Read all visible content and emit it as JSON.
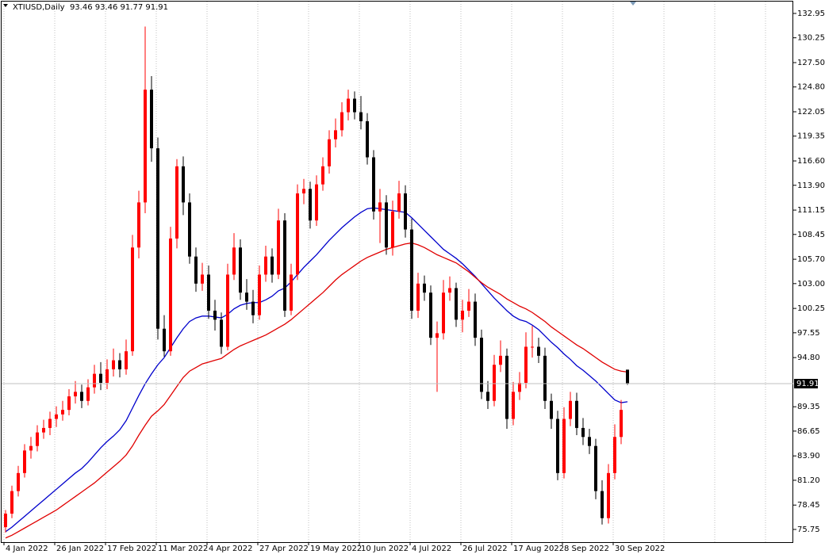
{
  "chart_data": {
    "type": "candlestick",
    "title": "XTIUSD,Daily  93.46 93.46 91.77 91.91",
    "categories": [
      "4 Jan 2022",
      null,
      null,
      null,
      null,
      null,
      null,
      null,
      "26 Jan 2022",
      null,
      null,
      null,
      null,
      null,
      null,
      null,
      "17 Feb 2022",
      null,
      null,
      null,
      null,
      null,
      null,
      null,
      "11 Mar 2022",
      null,
      null,
      null,
      null,
      null,
      null,
      null,
      "4 Apr 2022",
      null,
      null,
      null,
      null,
      null,
      null,
      null,
      "27 Apr 2022",
      null,
      null,
      null,
      null,
      null,
      null,
      null,
      "19 May 2022",
      null,
      null,
      null,
      null,
      null,
      null,
      null,
      "10 Jun 2022",
      null,
      null,
      null,
      null,
      null,
      null,
      null,
      "4 Jul 2022",
      null,
      null,
      null,
      null,
      null,
      null,
      null,
      "26 Jul 2022",
      null,
      null,
      null,
      null,
      null,
      null,
      null,
      "17 Aug 2022",
      null,
      null,
      null,
      null,
      null,
      null,
      null,
      "8 Sep 2022",
      null,
      null,
      null,
      null,
      null,
      null,
      null,
      "30 Sep 2022",
      null,
      null
    ],
    "candles": [
      [
        76,
        77.9,
        75.4,
        77.5
      ],
      [
        77.5,
        80.6,
        77,
        80
      ],
      [
        80,
        82.8,
        79.4,
        82
      ],
      [
        82,
        85.2,
        81.5,
        84.5
      ],
      [
        84.5,
        86,
        83.6,
        85
      ],
      [
        85,
        87.3,
        84.4,
        86.5
      ],
      [
        86.5,
        87.9,
        85.8,
        87
      ],
      [
        87,
        88.8,
        86.2,
        88
      ],
      [
        88,
        89.4,
        87.1,
        88.5
      ],
      [
        88.5,
        90,
        87.8,
        89
      ],
      [
        89,
        91.3,
        88.4,
        90.5
      ],
      [
        90.5,
        92.2,
        89.7,
        91
      ],
      [
        91,
        91.8,
        89.2,
        90
      ],
      [
        90,
        92.4,
        89.5,
        91.5
      ],
      [
        91.5,
        94,
        90.8,
        93
      ],
      [
        93,
        94.3,
        91.2,
        92
      ],
      [
        92,
        94.6,
        91.3,
        93.5
      ],
      [
        93.5,
        95.8,
        92.7,
        94.5
      ],
      [
        94.5,
        95.3,
        92.6,
        93.5
      ],
      [
        93.5,
        96.8,
        92.9,
        95.5
      ],
      [
        95.5,
        108.4,
        95,
        107
      ],
      [
        107,
        113.3,
        105.8,
        112
      ],
      [
        112,
        131.5,
        110.8,
        124.5
      ],
      [
        124.5,
        126,
        116.5,
        118
      ],
      [
        118,
        119.2,
        96.8,
        98
      ],
      [
        98,
        99.5,
        94.9,
        95.5
      ],
      [
        95.5,
        109.3,
        95,
        108
      ],
      [
        108,
        116.8,
        106.9,
        116
      ],
      [
        116,
        117.1,
        110.6,
        112
      ],
      [
        112,
        113,
        105.2,
        106
      ],
      [
        106,
        107,
        102.1,
        103
      ],
      [
        103,
        105.3,
        102.2,
        104
      ],
      [
        104,
        105,
        99.1,
        100
      ],
      [
        100,
        101.2,
        97.8,
        99
      ],
      [
        99,
        99.8,
        95.2,
        96
      ],
      [
        96,
        105.2,
        95.6,
        104
      ],
      [
        104,
        108.6,
        103.4,
        107
      ],
      [
        107,
        107.9,
        101.2,
        102
      ],
      [
        102,
        103.5,
        100.1,
        101
      ],
      [
        101,
        102.3,
        98.6,
        99.5
      ],
      [
        99.5,
        105,
        99,
        104
      ],
      [
        104,
        107.2,
        103.2,
        106
      ],
      [
        106,
        106.9,
        103.1,
        104
      ],
      [
        104,
        111.3,
        103.5,
        110
      ],
      [
        110,
        110.8,
        99.3,
        100
      ],
      [
        100,
        105.2,
        99.5,
        104
      ],
      [
        104,
        114,
        103.4,
        113
      ],
      [
        113,
        114.6,
        111.8,
        113.5
      ],
      [
        113.5,
        114.3,
        109.1,
        110
      ],
      [
        110,
        115,
        109.4,
        114
      ],
      [
        114,
        117,
        113.3,
        116
      ],
      [
        116,
        120,
        115.2,
        119
      ],
      [
        119,
        121.3,
        118.1,
        120
      ],
      [
        120,
        123.1,
        119.3,
        122
      ],
      [
        122,
        124.5,
        121.1,
        123.5
      ],
      [
        123.5,
        124.3,
        121.2,
        122
      ],
      [
        122,
        123.8,
        120.1,
        121
      ],
      [
        121,
        121.9,
        116.2,
        117
      ],
      [
        117,
        117.8,
        110.1,
        111
      ],
      [
        111,
        113.5,
        107.5,
        112
      ],
      [
        112,
        112.8,
        106.2,
        107
      ],
      [
        107,
        112.2,
        106.1,
        111
      ],
      [
        111,
        114.4,
        110.2,
        113
      ],
      [
        113,
        113.9,
        108.1,
        109
      ],
      [
        109,
        110.2,
        99.1,
        100
      ],
      [
        100,
        104.2,
        99.2,
        103
      ],
      [
        103,
        103.9,
        101.1,
        102
      ],
      [
        102,
        102.8,
        96.2,
        97
      ],
      [
        97,
        98.8,
        91,
        97.5
      ],
      [
        97.5,
        103.4,
        96.8,
        102
      ],
      [
        102,
        103.8,
        101.1,
        102.5
      ],
      [
        102.5,
        103.1,
        98.2,
        99
      ],
      [
        99,
        101.2,
        97.6,
        100
      ],
      [
        100,
        102.4,
        99.3,
        101
      ],
      [
        101,
        101.9,
        96.1,
        97
      ],
      [
        97,
        97.9,
        90.2,
        91
      ],
      [
        91,
        92.2,
        89.1,
        90
      ],
      [
        90,
        95.1,
        89.4,
        94
      ],
      [
        94,
        96.7,
        93.2,
        95
      ],
      [
        95,
        95.8,
        86.9,
        88
      ],
      [
        88,
        92.1,
        87.3,
        91
      ],
      [
        91,
        93.2,
        90.1,
        92
      ],
      [
        92,
        97.6,
        91.4,
        96
      ],
      [
        96,
        98.3,
        94.8,
        96
      ],
      [
        96,
        97,
        94.2,
        95
      ],
      [
        95,
        95.9,
        89.1,
        90
      ],
      [
        90,
        90.8,
        86.9,
        88
      ],
      [
        88,
        88.9,
        81.2,
        82
      ],
      [
        82,
        89.3,
        81.4,
        88
      ],
      [
        88,
        91,
        87.2,
        90
      ],
      [
        90,
        90.9,
        86.2,
        87
      ],
      [
        87,
        88.1,
        85.1,
        86
      ],
      [
        86,
        86.9,
        84.1,
        85
      ],
      [
        85,
        85.8,
        79.1,
        80
      ],
      [
        80,
        81.2,
        76.3,
        77
      ],
      [
        77,
        83,
        76.4,
        82
      ],
      [
        82,
        87.4,
        81.3,
        86
      ],
      [
        86,
        90.1,
        85.2,
        89
      ],
      [
        93.46,
        93.46,
        91.77,
        91.91
      ]
    ],
    "up_color": "#ff0000",
    "down_color": "#000000",
    "series": [
      {
        "color": "#0000cc",
        "values": [
          75.5,
          76.0,
          76.6,
          77.2,
          77.8,
          78.4,
          79.0,
          79.6,
          80.2,
          80.8,
          81.4,
          82.0,
          82.5,
          83.2,
          84.0,
          84.8,
          85.5,
          86.1,
          86.8,
          87.8,
          89.2,
          90.6,
          91.9,
          93.0,
          94.0,
          94.8,
          95.9,
          97.0,
          98.0,
          98.8,
          99.2,
          99.4,
          99.4,
          99.3,
          99.2,
          99.6,
          100.2,
          100.6,
          100.8,
          100.9,
          100.9,
          101.2,
          101.6,
          102.2,
          102.5,
          103.2,
          104.0,
          104.8,
          105.5,
          106.2,
          107.0,
          107.8,
          108.5,
          109.2,
          109.8,
          110.4,
          110.9,
          111.3,
          111.4,
          111.3,
          111.2,
          111.1,
          111.0,
          110.9,
          110.3,
          109.6,
          108.9,
          108.2,
          107.5,
          106.8,
          106.3,
          105.8,
          105.2,
          104.5,
          103.8,
          103.0,
          102.2,
          101.4,
          100.7,
          100.0,
          99.4,
          99.0,
          98.8,
          98.4,
          97.9,
          97.2,
          96.5,
          95.9,
          95.2,
          94.6,
          93.9,
          93.4,
          92.8,
          92.2,
          91.5,
          90.8,
          90.1,
          89.8,
          89.9
        ]
      },
      {
        "color": "#e00000",
        "values": [
          74.8,
          75.1,
          75.5,
          75.9,
          76.3,
          76.7,
          77.1,
          77.5,
          77.9,
          78.4,
          78.9,
          79.4,
          79.9,
          80.4,
          80.9,
          81.5,
          82.1,
          82.7,
          83.3,
          84.0,
          85.0,
          86.2,
          87.3,
          88.3,
          88.9,
          89.6,
          90.6,
          91.6,
          92.6,
          93.3,
          93.7,
          94.1,
          94.3,
          94.5,
          94.7,
          95.2,
          95.7,
          96.1,
          96.4,
          96.7,
          97.0,
          97.3,
          97.7,
          98.1,
          98.5,
          99.0,
          99.6,
          100.2,
          100.8,
          101.4,
          102.0,
          102.7,
          103.4,
          104.0,
          104.5,
          105.0,
          105.5,
          105.9,
          106.2,
          106.5,
          106.8,
          107.0,
          107.2,
          107.4,
          107.5,
          107.3,
          107.0,
          106.6,
          106.2,
          105.9,
          105.6,
          105.3,
          104.8,
          104.3,
          103.7,
          103.1,
          102.6,
          102.2,
          101.8,
          101.3,
          100.9,
          100.5,
          100.2,
          99.8,
          99.3,
          98.8,
          98.2,
          97.7,
          97.2,
          96.7,
          96.2,
          95.8,
          95.3,
          94.8,
          94.3,
          93.9,
          93.5,
          93.3,
          93.2
        ]
      }
    ],
    "ylim": [
      74.34,
      134.44
    ],
    "yticks": [
      75.75,
      78.45,
      {
        "value": 81.2,
        "label": "81.20"
      },
      {
        "value": 83.9,
        "label": "83.90"
      },
      86.65,
      89.35,
      {
        "value": 94.8,
        "label": "94.80"
      },
      97.55,
      100.25,
      {
        "value": 103,
        "label": "103.00"
      },
      {
        "value": 105.7,
        "label": "105.70"
      },
      108.45,
      111.15,
      {
        "value": 113.9,
        "label": "113.90"
      },
      {
        "value": 116.6,
        "label": "116.60"
      },
      119.35,
      122.05,
      {
        "value": 124.8,
        "label": "124.80"
      },
      {
        "value": 127.5,
        "label": "127.50"
      },
      130.25,
      132.95
    ],
    "grid": true
  }
}
